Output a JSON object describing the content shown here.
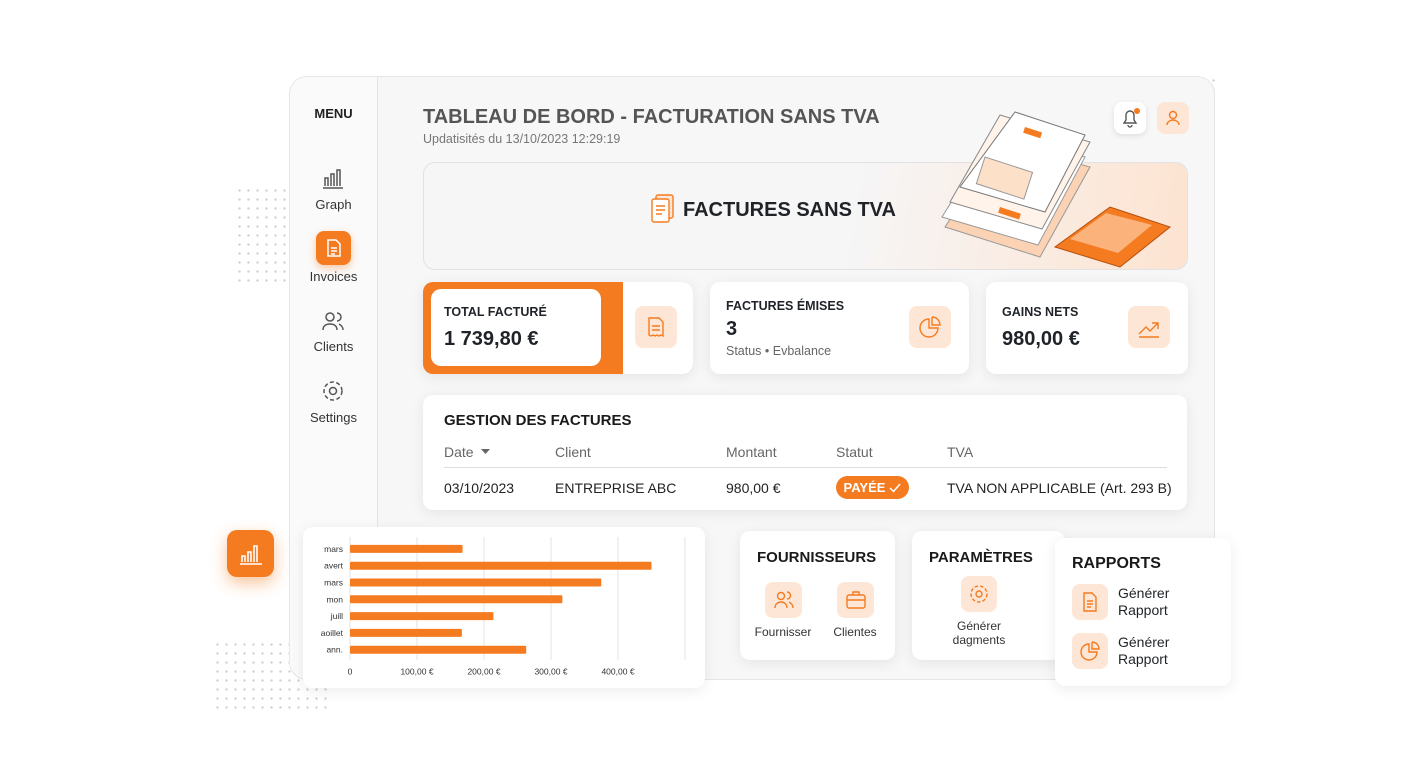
{
  "menu": {
    "title": "MENU",
    "items": [
      "Graph",
      "Invoices",
      "Clients",
      "Settings"
    ]
  },
  "header": {
    "title": "TABLEAU DE BORD - FACTURATION SANS TVA",
    "subtitle": "Updatisités du 13/10/2023 12:29:19"
  },
  "banner": {
    "title": "FACTURES SANS TVA"
  },
  "stats": [
    {
      "label": "TOTAL FACTURÉ",
      "value": "1 739,80 €"
    },
    {
      "label": "FACTURES ÉMISES",
      "value": "3",
      "note": "Status • Evbalance"
    },
    {
      "label": "GAINS NETS",
      "value": "980,00 €"
    }
  ],
  "table": {
    "title": "GESTION DES FACTURES",
    "columns": [
      "Date",
      "Client",
      "Montant",
      "Statut",
      "TVA"
    ],
    "rows": [
      [
        "03/10/2023",
        "ENTREPRISE ABC",
        "980,00 €",
        "PAYÉE",
        "TVA NON APPLICABLE (Art. 293 B)"
      ]
    ]
  },
  "fournisseurs": {
    "title": "FOURNISSEURS",
    "items": [
      "Fournisser",
      "Clientes"
    ]
  },
  "parametres": {
    "title": "PARAMÈTRES",
    "items": [
      "Générer dagments"
    ]
  },
  "rapports": {
    "title": "RAPPORTS",
    "items": [
      "Générer Rapport",
      "Générer Rapport"
    ]
  },
  "chart": {
    "type": "bar",
    "categories": [
      "mars",
      "avert",
      "mars",
      "mon",
      "juill",
      "aoillet",
      "ann."
    ],
    "values": [
      168,
      450,
      375,
      317,
      214,
      167,
      263
    ],
    "color": "#f47b20",
    "xlim": [
      0,
      500
    ],
    "xticks": [
      0,
      {
        "value": 100,
        "label": "100,00 €"
      },
      {
        "value": 200,
        "label": "200,00 €"
      },
      {
        "value": 300,
        "label": "300,00 €"
      },
      {
        "value": 400,
        "label": "400,00 €"
      }
    ],
    "grid": true
  }
}
